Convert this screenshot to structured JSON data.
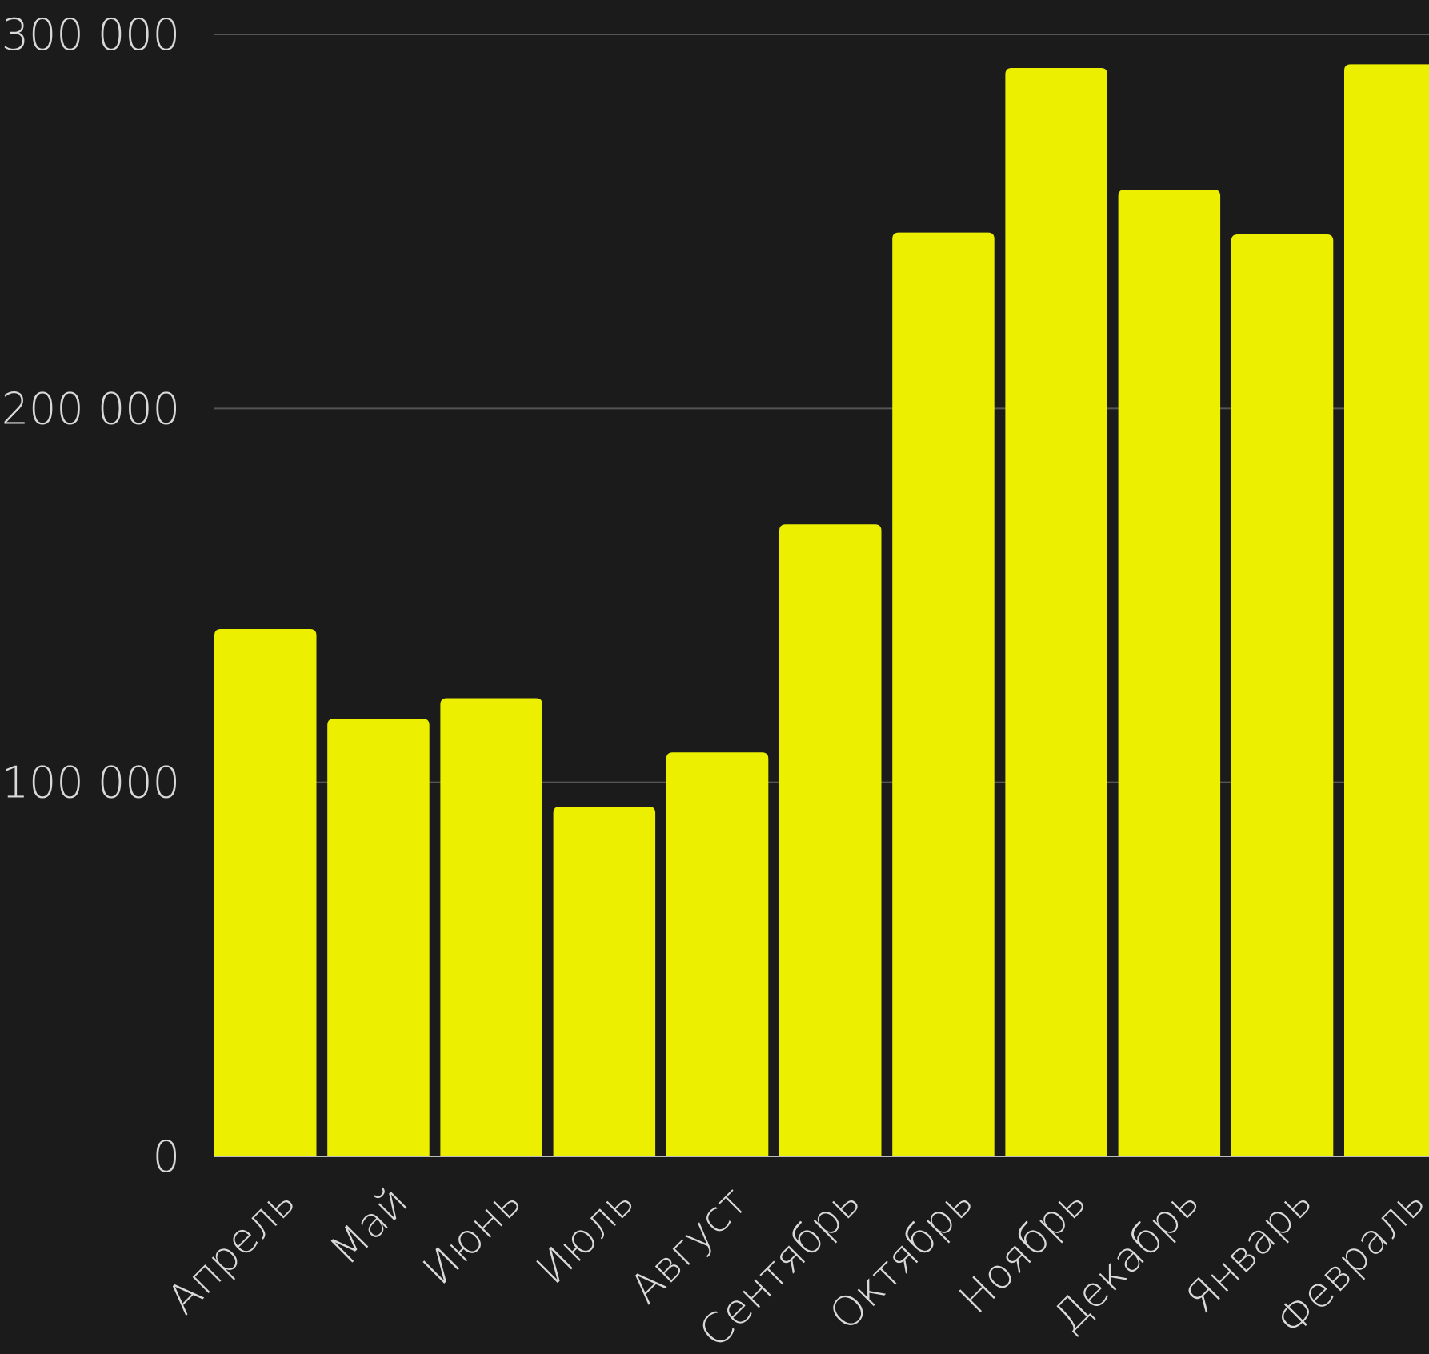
{
  "colors": {
    "background": "#1b1b1b",
    "bar": "#ecef00",
    "gridline": "#555555",
    "axis_line": "#bdbdbd",
    "tick_text": "#d9d9d9"
  },
  "chart_data": {
    "type": "bar",
    "categories": [
      "Апрель",
      "Май",
      "Июнь",
      "Июль",
      "Август",
      "Сентябрь",
      "Октябрь",
      "Ноябрь",
      "Декабрь",
      "Январь",
      "Февраль"
    ],
    "values": [
      141000,
      117000,
      122500,
      93500,
      108000,
      169000,
      247000,
      291000,
      258500,
      246500,
      292000
    ],
    "ylim": [
      0,
      300000
    ],
    "yticks": [
      0,
      100000,
      200000,
      300000
    ],
    "ytick_labels": [
      "0",
      "100 000",
      "200 000",
      "300 000"
    ],
    "title": "",
    "xlabel": "",
    "ylabel": "",
    "grid": true,
    "legend": "none"
  }
}
